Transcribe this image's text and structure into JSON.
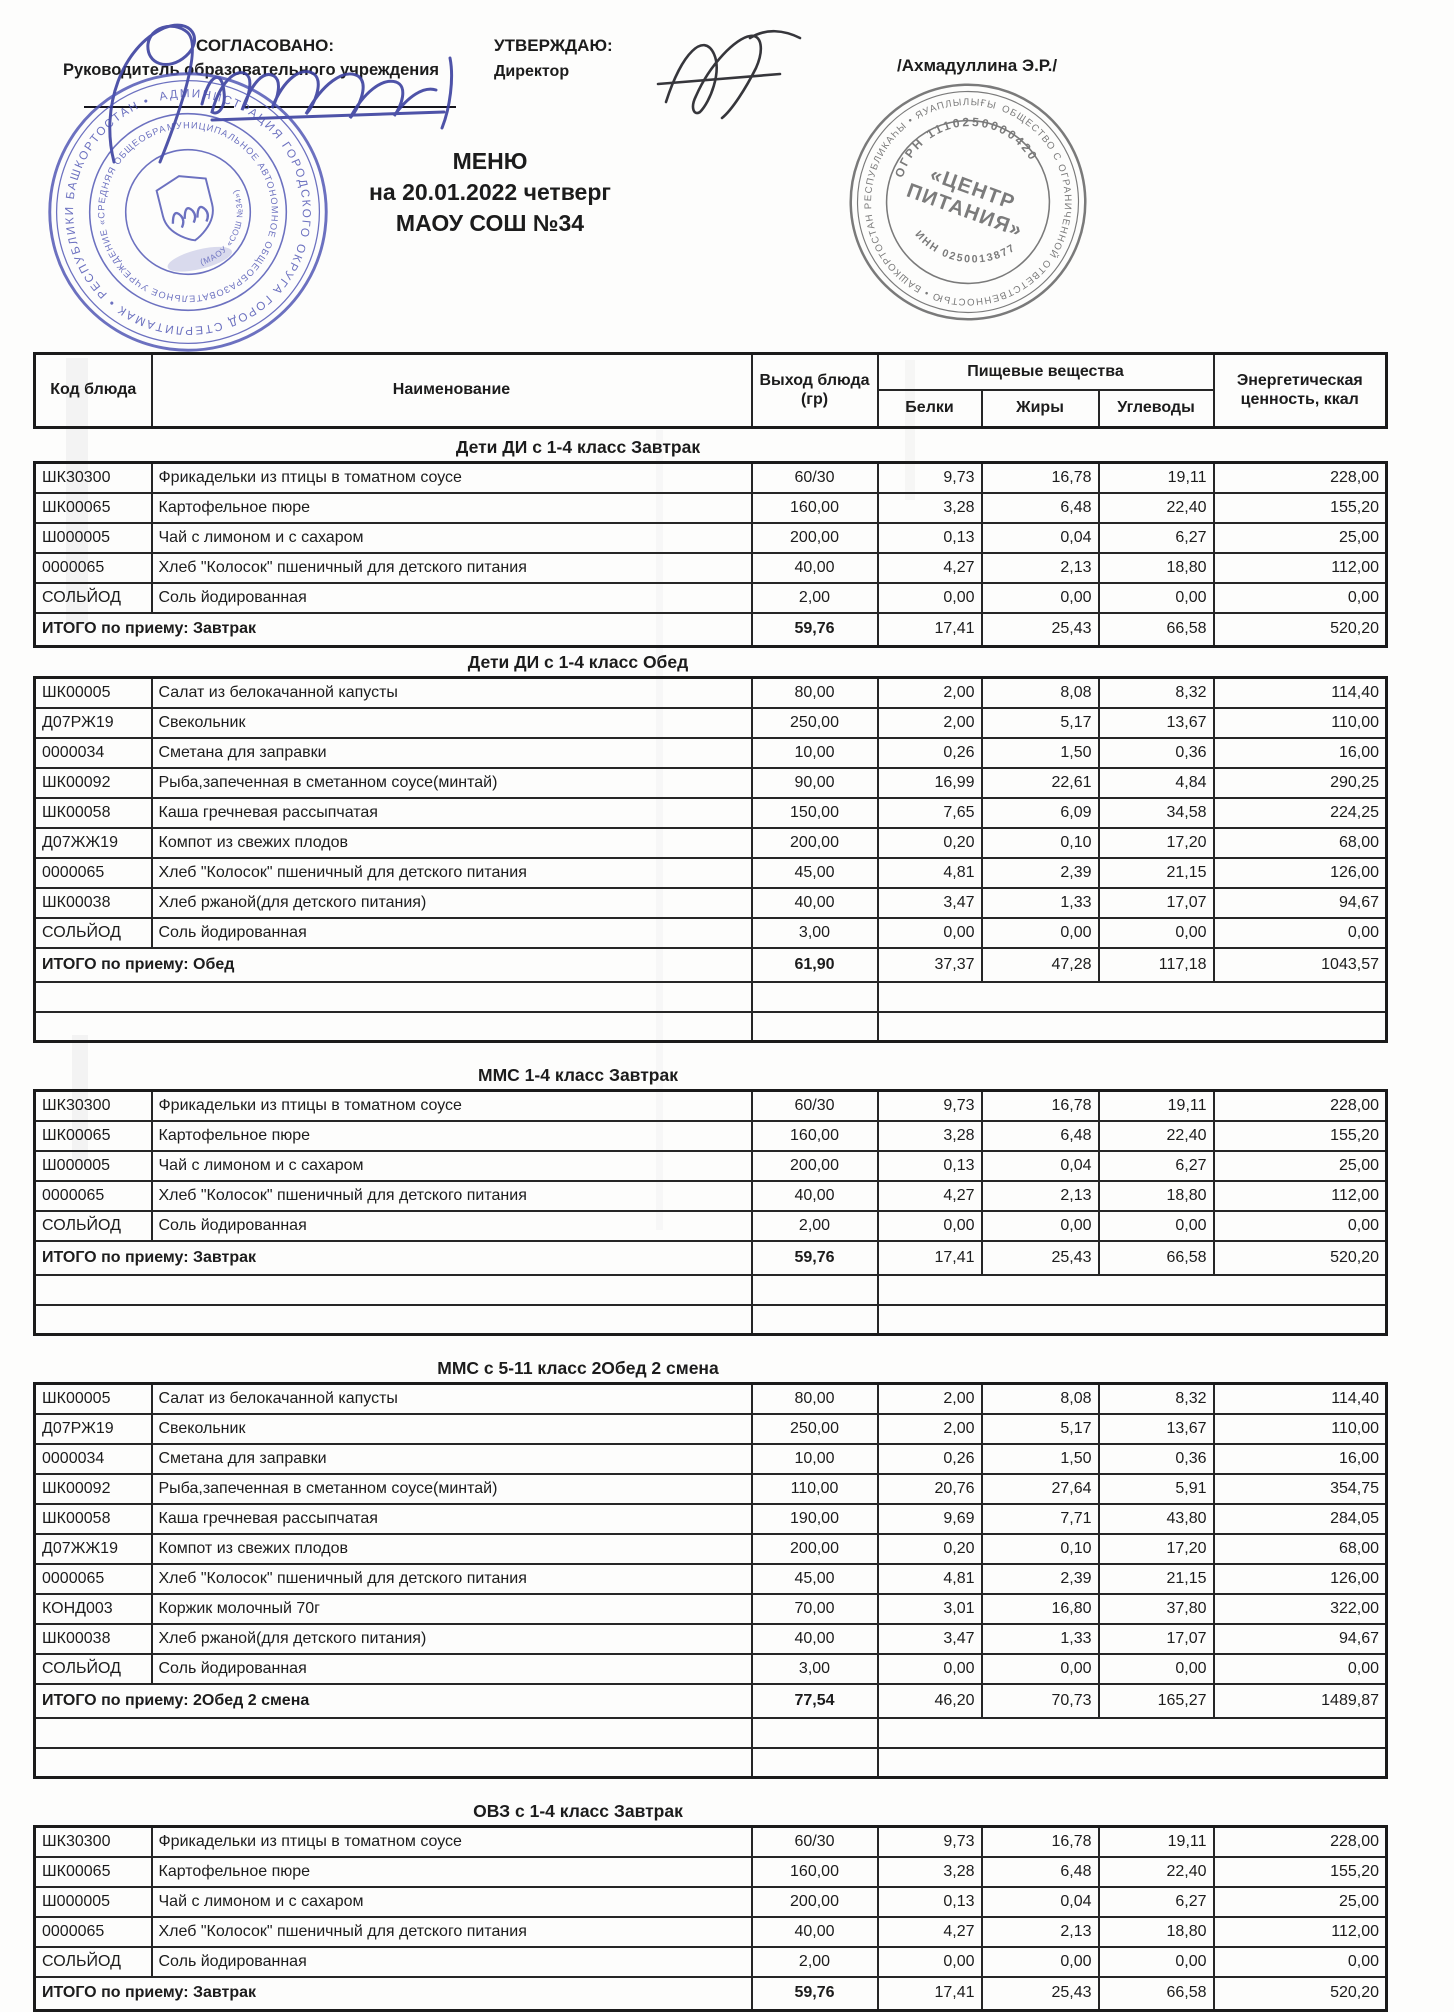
{
  "approval": {
    "agreed_label": "СОГЛАСОВАНО:",
    "agreed_role": "Руководитель образовательного учреждения",
    "approved_label": "УТВЕРЖДАЮ:",
    "approved_role": "Директор",
    "approved_name": "/Ахмадуллина Э.Р./"
  },
  "title": {
    "line1": "МЕНЮ",
    "line2": "на 20.01.2022  четверг",
    "line3": "МАОУ СОШ №34"
  },
  "stamps": {
    "school_stamp": {
      "color": "#4d53b3",
      "ring_text": "АДМИНИСТРАЦИЯ ГОРОДСКОГО ОКРУГА ГОРОД СТЕРЛИТАМАК • РЕСПУБЛИКИ БАШКОРТОСТАН •",
      "middle_text": "МУНИЦИПАЛЬНОЕ АВТОНОМНОЕ ОБЩЕОБРАЗОВАТЕЛЬНОЕ УЧРЕЖДЕНИЕ «СРЕДНЯЯ ОБЩЕОБРАЗОВАТЕЛЬНАЯ ШКОЛА №34»",
      "inner_text": "(МАОУ «СОШ №34»)"
    },
    "caterer_stamp": {
      "color": "#565656",
      "ring_text": "ОБЩЕСТВО С ОГРАНИЧЕННОЙ ОТВЕТСТВЕННОСТЬЮ • БАШКОРТОСТАН РЕСПУБЛИКАҺЫ • ЯУАПЛЫЛЫҒЫ СИКЛӘНГӘН ЙӘМҒИӘТЕ •",
      "ogrn": "ОГРН 1110250000420",
      "inn": "ИНН 0250013877",
      "center_line1": "«ЦЕНТР",
      "center_line2": "ПИТАНИЯ»"
    }
  },
  "table": {
    "headers": {
      "code": "Код блюда",
      "name": "Наименование",
      "out": "Выход блюда (гр)",
      "nutrients": "Пищевые вещества",
      "protein": "Белки",
      "fat": "Жиры",
      "carbs": "Углеводы",
      "energy": "Энергетическая ценность, ккал"
    }
  },
  "sections": [
    {
      "title": "Дети ДИ с 1-4 класс Завтрак",
      "rows": [
        {
          "code": "ШК30300",
          "name": "Фрикадельки из птицы в томатном соусе",
          "out": "60/30",
          "protein": "9,73",
          "fat": "16,78",
          "carbs": "19,11",
          "kcal": "228,00"
        },
        {
          "code": "ШК00065",
          "name": "Картофельное пюре",
          "out": "160,00",
          "protein": "3,28",
          "fat": "6,48",
          "carbs": "22,40",
          "kcal": "155,20"
        },
        {
          "code": "Ш000005",
          "name": "Чай с лимоном и с сахаром",
          "out": "200,00",
          "protein": "0,13",
          "fat": "0,04",
          "carbs": "6,27",
          "kcal": "25,00"
        },
        {
          "code": "0000065",
          "name": "Хлеб \"Колосок\" пшеничный для детского питания",
          "out": "40,00",
          "protein": "4,27",
          "fat": "2,13",
          "carbs": "18,80",
          "kcal": "112,00"
        },
        {
          "code": "СОЛЬЙОД",
          "name": "Соль йодированная",
          "out": "2,00",
          "protein": "0,00",
          "fat": "0,00",
          "carbs": "0,00",
          "kcal": "0,00"
        }
      ],
      "total": {
        "label": "ИТОГО по приему: Завтрак",
        "out": "59,76",
        "protein": "17,41",
        "fat": "25,43",
        "carbs": "66,58",
        "kcal": "520,20"
      },
      "empty_rows_after": 0
    },
    {
      "title": "Дети ДИ с 1-4 класс Обед",
      "rows": [
        {
          "code": "ШК00005",
          "name": "Салат из белокачанной капусты",
          "out": "80,00",
          "protein": "2,00",
          "fat": "8,08",
          "carbs": "8,32",
          "kcal": "114,40"
        },
        {
          "code": "Д07РЖ19",
          "name": "Свекольник",
          "out": "250,00",
          "protein": "2,00",
          "fat": "5,17",
          "carbs": "13,67",
          "kcal": "110,00"
        },
        {
          "code": "0000034",
          "name": "Сметана для заправки",
          "out": "10,00",
          "protein": "0,26",
          "fat": "1,50",
          "carbs": "0,36",
          "kcal": "16,00"
        },
        {
          "code": "ШК00092",
          "name": "Рыба,запеченная в сметанном соусе(минтай)",
          "out": "90,00",
          "protein": "16,99",
          "fat": "22,61",
          "carbs": "4,84",
          "kcal": "290,25"
        },
        {
          "code": "ШК00058",
          "name": "Каша гречневая рассыпчатая",
          "out": "150,00",
          "protein": "7,65",
          "fat": "6,09",
          "carbs": "34,58",
          "kcal": "224,25"
        },
        {
          "code": "Д07ЖЖ19",
          "name": "Компот из свежих плодов",
          "out": "200,00",
          "protein": "0,20",
          "fat": "0,10",
          "carbs": "17,20",
          "kcal": "68,00"
        },
        {
          "code": "0000065",
          "name": "Хлеб \"Колосок\" пшеничный для детского питания",
          "out": "45,00",
          "protein": "4,81",
          "fat": "2,39",
          "carbs": "21,15",
          "kcal": "126,00"
        },
        {
          "code": "ШК00038",
          "name": "Хлеб ржаной(для детского питания)",
          "out": "40,00",
          "protein": "3,47",
          "fat": "1,33",
          "carbs": "17,07",
          "kcal": "94,67"
        },
        {
          "code": "СОЛЬЙОД",
          "name": "Соль йодированная",
          "out": "3,00",
          "protein": "0,00",
          "fat": "0,00",
          "carbs": "0,00",
          "kcal": "0,00"
        }
      ],
      "total": {
        "label": "ИТОГО по приему: Обед",
        "out": "61,90",
        "protein": "37,37",
        "fat": "47,28",
        "carbs": "117,18",
        "kcal": "1043,57"
      },
      "empty_rows_after": 2
    },
    {
      "title": "ММС 1-4 класс Завтрак",
      "rows": [
        {
          "code": "ШК30300",
          "name": "Фрикадельки из птицы в томатном соусе",
          "out": "60/30",
          "protein": "9,73",
          "fat": "16,78",
          "carbs": "19,11",
          "kcal": "228,00"
        },
        {
          "code": "ШК00065",
          "name": "Картофельное пюре",
          "out": "160,00",
          "protein": "3,28",
          "fat": "6,48",
          "carbs": "22,40",
          "kcal": "155,20"
        },
        {
          "code": "Ш000005",
          "name": "Чай с лимоном и с сахаром",
          "out": "200,00",
          "protein": "0,13",
          "fat": "0,04",
          "carbs": "6,27",
          "kcal": "25,00"
        },
        {
          "code": "0000065",
          "name": "Хлеб \"Колосок\" пшеничный для детского питания",
          "out": "40,00",
          "protein": "4,27",
          "fat": "2,13",
          "carbs": "18,80",
          "kcal": "112,00"
        },
        {
          "code": "СОЛЬЙОД",
          "name": "Соль йодированная",
          "out": "2,00",
          "protein": "0,00",
          "fat": "0,00",
          "carbs": "0,00",
          "kcal": "0,00"
        }
      ],
      "total": {
        "label": "ИТОГО по приему: Завтрак",
        "out": "59,76",
        "protein": "17,41",
        "fat": "25,43",
        "carbs": "66,58",
        "kcal": "520,20"
      },
      "empty_rows_after": 2
    },
    {
      "title": "ММС с 5-11 класс 2Обед 2 смена",
      "rows": [
        {
          "code": "ШК00005",
          "name": "Салат из белокачанной капусты",
          "out": "80,00",
          "protein": "2,00",
          "fat": "8,08",
          "carbs": "8,32",
          "kcal": "114,40"
        },
        {
          "code": "Д07РЖ19",
          "name": "Свекольник",
          "out": "250,00",
          "protein": "2,00",
          "fat": "5,17",
          "carbs": "13,67",
          "kcal": "110,00"
        },
        {
          "code": "0000034",
          "name": "Сметана для заправки",
          "out": "10,00",
          "protein": "0,26",
          "fat": "1,50",
          "carbs": "0,36",
          "kcal": "16,00"
        },
        {
          "code": "ШК00092",
          "name": "Рыба,запеченная в сметанном соусе(минтай)",
          "out": "110,00",
          "protein": "20,76",
          "fat": "27,64",
          "carbs": "5,91",
          "kcal": "354,75"
        },
        {
          "code": "ШК00058",
          "name": "Каша гречневая рассыпчатая",
          "out": "190,00",
          "protein": "9,69",
          "fat": "7,71",
          "carbs": "43,80",
          "kcal": "284,05"
        },
        {
          "code": "Д07ЖЖ19",
          "name": "Компот из свежих плодов",
          "out": "200,00",
          "protein": "0,20",
          "fat": "0,10",
          "carbs": "17,20",
          "kcal": "68,00"
        },
        {
          "code": "0000065",
          "name": "Хлеб \"Колосок\" пшеничный для детского питания",
          "out": "45,00",
          "protein": "4,81",
          "fat": "2,39",
          "carbs": "21,15",
          "kcal": "126,00"
        },
        {
          "code": "КОНД003",
          "name": "Коржик молочный 70г",
          "out": "70,00",
          "protein": "3,01",
          "fat": "16,80",
          "carbs": "37,80",
          "kcal": "322,00"
        },
        {
          "code": "ШК00038",
          "name": "Хлеб ржаной(для детского питания)",
          "out": "40,00",
          "protein": "3,47",
          "fat": "1,33",
          "carbs": "17,07",
          "kcal": "94,67"
        },
        {
          "code": "СОЛЬЙОД",
          "name": "Соль йодированная",
          "out": "3,00",
          "protein": "0,00",
          "fat": "0,00",
          "carbs": "0,00",
          "kcal": "0,00"
        }
      ],
      "total": {
        "label": "ИТОГО по приему: 2Обед 2 смена",
        "out": "77,54",
        "protein": "46,20",
        "fat": "70,73",
        "carbs": "165,27",
        "kcal": "1489,87"
      },
      "empty_rows_after": 2
    },
    {
      "title": "ОВЗ с 1-4 класс Завтрак",
      "rows": [
        {
          "code": "ШК30300",
          "name": "Фрикадельки из птицы в томатном соусе",
          "out": "60/30",
          "protein": "9,73",
          "fat": "16,78",
          "carbs": "19,11",
          "kcal": "228,00"
        },
        {
          "code": "ШК00065",
          "name": "Картофельное пюре",
          "out": "160,00",
          "protein": "3,28",
          "fat": "6,48",
          "carbs": "22,40",
          "kcal": "155,20"
        },
        {
          "code": "Ш000005",
          "name": "Чай с лимоном и с сахаром",
          "out": "200,00",
          "protein": "0,13",
          "fat": "0,04",
          "carbs": "6,27",
          "kcal": "25,00"
        },
        {
          "code": "0000065",
          "name": "Хлеб \"Колосок\" пшеничный для детского питания",
          "out": "40,00",
          "protein": "4,27",
          "fat": "2,13",
          "carbs": "18,80",
          "kcal": "112,00"
        },
        {
          "code": "СОЛЬЙОД",
          "name": "Соль йодированная",
          "out": "2,00",
          "protein": "0,00",
          "fat": "0,00",
          "carbs": "0,00",
          "kcal": "0,00"
        }
      ],
      "total": {
        "label": "ИТОГО по приему: Завтрак",
        "out": "59,76",
        "protein": "17,41",
        "fat": "25,43",
        "carbs": "66,58",
        "kcal": "520,20"
      },
      "empty_rows_after": 0
    }
  ]
}
